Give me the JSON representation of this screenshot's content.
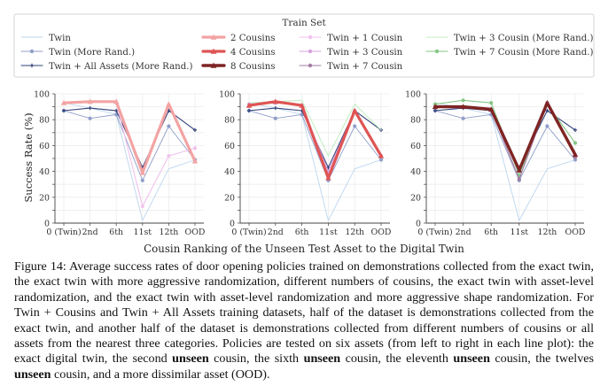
{
  "chart_data": {
    "type": "line",
    "legend": {
      "title": "Train Set",
      "placement": "top",
      "columns": [
        [
          "Twin",
          "Twin (More Rand.)",
          "Twin + All Assets (More Rand.)"
        ],
        [
          "2 Cousins",
          "4 Cousins",
          "8 Cousins"
        ],
        [
          "Twin + 1 Cousin",
          "Twin + 3 Cousin",
          "Twin + 7 Cousin"
        ],
        [
          "Twin + 3 Cousin (More Rand.)",
          "Twin + 7 Cousin (More Rand.)"
        ]
      ]
    },
    "xlabel": "Cousin Ranking of the Unseen Test Asset to the Digital Twin",
    "ylabel": "Success Rate (%)",
    "categories": [
      "0 (Twin)",
      "2nd",
      "6th",
      "11st",
      "12th",
      "OOD"
    ],
    "ylim": [
      0,
      100
    ],
    "yticks": [
      0,
      10,
      20,
      30,
      40,
      50,
      60,
      70,
      80,
      90,
      100
    ],
    "grid": true,
    "styles": {
      "Twin": {
        "color": "#bcd6ef",
        "width": 0.9,
        "marker": "none"
      },
      "Twin (More Rand.)": {
        "color": "#8f9ec9",
        "width": 0.9,
        "marker": "dot"
      },
      "Twin + All Assets (More Rand.)": {
        "color": "#33427a",
        "width": 1.1,
        "marker": "plus"
      },
      "2 Cousins": {
        "color": "#f3a3a3",
        "width": 3.2,
        "marker": "tri"
      },
      "4 Cousins": {
        "color": "#df5454",
        "width": 3.2,
        "marker": "tri"
      },
      "8 Cousins": {
        "color": "#7f2424",
        "width": 3.4,
        "marker": "tri"
      },
      "Twin + 1 Cousin": {
        "color": "#f1c2ee",
        "width": 1.1,
        "marker": "dot"
      },
      "Twin + 3 Cousin": {
        "color": "#d7a0dc",
        "width": 1.1,
        "marker": "dot"
      },
      "Twin + 7 Cousin": {
        "color": "#a37ba3",
        "width": 1.1,
        "marker": "dot"
      },
      "Twin + 3 Cousin (More Rand.)": {
        "color": "#c6eec6",
        "width": 1.1,
        "marker": "none"
      },
      "Twin + 7 Cousin (More Rand.)": {
        "color": "#86c686",
        "width": 1.1,
        "marker": "dot"
      }
    },
    "panels": [
      {
        "series": [
          {
            "name": "Twin",
            "values": [
              93,
              89,
              84,
              2,
              42,
              49
            ]
          },
          {
            "name": "Twin (More Rand.)",
            "values": [
              87,
              81,
              84,
              33,
              75,
              49
            ]
          },
          {
            "name": "Twin + All Assets (More Rand.)",
            "values": [
              87,
              89,
              87,
              43,
              87,
              72
            ]
          },
          {
            "name": "Twin + 1 Cousin",
            "values": [
              null,
              null,
              93,
              13,
              52,
              58
            ]
          },
          {
            "name": "2 Cousins",
            "values": [
              93,
              94,
              94,
              39,
              92,
              48
            ]
          }
        ]
      },
      {
        "series": [
          {
            "name": "Twin",
            "values": [
              93,
              89,
              84,
              2,
              42,
              49
            ]
          },
          {
            "name": "Twin (More Rand.)",
            "values": [
              87,
              81,
              84,
              33,
              75,
              49
            ]
          },
          {
            "name": "Twin + All Assets (More Rand.)",
            "values": [
              87,
              89,
              87,
              43,
              87,
              72
            ]
          },
          {
            "name": "Twin + 3 Cousin (More Rand.)",
            "values": [
              93,
              94,
              95,
              52,
              92,
              72
            ]
          },
          {
            "name": "Twin + 3 Cousin",
            "values": [
              92,
              93,
              91,
              40,
              87,
              52
            ]
          },
          {
            "name": "4 Cousins",
            "values": [
              91,
              94,
              91,
              35,
              87,
              52
            ]
          }
        ]
      },
      {
        "series": [
          {
            "name": "Twin",
            "values": [
              93,
              89,
              84,
              2,
              42,
              49
            ]
          },
          {
            "name": "Twin (More Rand.)",
            "values": [
              87,
              81,
              84,
              33,
              75,
              49
            ]
          },
          {
            "name": "Twin + All Assets (More Rand.)",
            "values": [
              87,
              89,
              87,
              43,
              87,
              72
            ]
          },
          {
            "name": "Twin + 7 Cousin (More Rand.)",
            "values": [
              92,
              95,
              93,
              37,
              92,
              62
            ]
          },
          {
            "name": "Twin + 7 Cousin",
            "values": [
              90,
              90,
              88,
              34,
              93,
              51
            ]
          },
          {
            "name": "8 Cousins",
            "values": [
              90,
              90,
              88,
              41,
              93,
              53
            ]
          }
        ]
      }
    ]
  },
  "caption": {
    "parts": [
      "Figure 14: Average success rates of door opening policies trained on demonstrations collected from the exact twin, the exact twin with more aggressive randomization, different numbers of cousins, the exact twin with asset-level randomization, and the exact twin with asset-level randomization and more aggressive shape randomization. For Twin + Cousins and Twin + All Assets training datasets, half of the dataset is demonstrations collected from the exact twin, and another half of the dataset is demonstrations collected from different numbers of cousins or all assets from the nearest three categories.  Policies are tested on six assets (from left to right in each line plot): the exact digital twin, the second ",
      "unseen",
      " cousin, the sixth ",
      "unseen",
      " cousin, the eleventh ",
      "unseen",
      " cousin, the twelves ",
      "unseen",
      " cousin, and a more dissimilar asset (OOD)."
    ]
  }
}
